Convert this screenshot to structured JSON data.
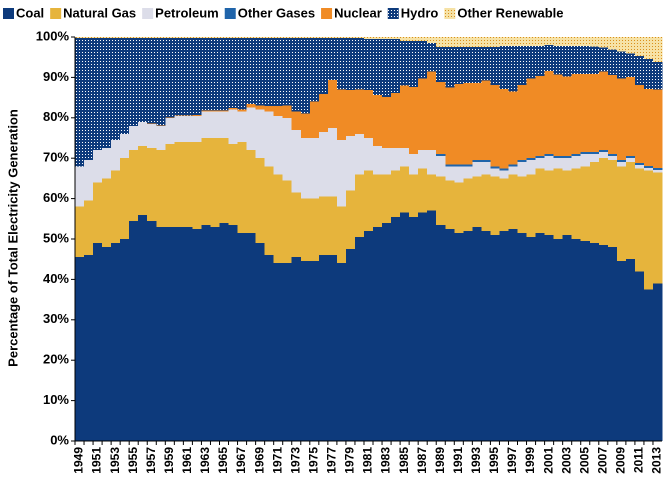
{
  "chart_data": {
    "type": "stacked_step_area",
    "y_label": "Percentage of Total Electricity Generation",
    "categories": [
      "1949",
      null,
      "1951",
      null,
      "1953",
      null,
      "1955",
      null,
      "1957",
      null,
      "1959",
      null,
      "1961",
      null,
      "1963",
      null,
      "1965",
      null,
      "1967",
      null,
      "1969",
      null,
      "1971",
      null,
      "1973",
      null,
      "1975",
      null,
      "1977",
      null,
      "1979",
      null,
      "1981",
      null,
      "1983",
      null,
      "1985",
      null,
      "1987",
      null,
      "1989",
      null,
      "1991",
      null,
      "1993",
      null,
      "1995",
      null,
      "1997",
      null,
      "1999",
      null,
      "2001",
      null,
      "2003",
      null,
      "2005",
      null,
      "2007",
      null,
      "2009",
      null,
      "2011",
      null,
      "2013"
    ],
    "ylim": [
      0,
      100
    ],
    "yticks": [
      {
        "value": 0,
        "label": "0%"
      },
      {
        "value": 10,
        "label": "10%"
      },
      {
        "value": 20,
        "label": "20%"
      },
      {
        "value": 30,
        "label": "30%"
      },
      {
        "value": 40,
        "label": "40%"
      },
      {
        "value": 50,
        "label": "50%"
      },
      {
        "value": 60,
        "label": "60%"
      },
      {
        "value": 70,
        "label": "70%"
      },
      {
        "value": 80,
        "label": "80%"
      },
      {
        "value": 90,
        "label": "90%"
      },
      {
        "value": 100,
        "label": "100%"
      }
    ],
    "legend": "top",
    "series": [
      {
        "name": "Coal",
        "color": "#0d3a7c",
        "values": [
          45.5,
          46,
          49,
          48,
          49,
          50,
          54.5,
          56,
          54.5,
          53,
          53,
          53,
          53,
          52.5,
          53.5,
          53,
          54,
          53.5,
          51.5,
          51.5,
          49,
          46,
          44,
          44,
          45.5,
          44.5,
          44.5,
          46,
          46,
          44,
          47.5,
          50.5,
          52,
          53,
          54,
          55.5,
          56.5,
          55.5,
          56.5,
          57,
          53.5,
          52.5,
          51.5,
          52,
          53,
          52,
          51,
          52,
          52.5,
          51.5,
          50.5,
          51.5,
          51,
          50,
          51,
          50,
          49.5,
          49,
          48.5,
          48,
          44.5,
          45,
          42,
          37.5,
          39
        ]
      },
      {
        "name": "Natural Gas",
        "color": "#e6b43c",
        "values": [
          12.5,
          13.5,
          15,
          17,
          18,
          20,
          17.5,
          17,
          18,
          19,
          20.5,
          21,
          21,
          21.5,
          21.5,
          22,
          21,
          20,
          22.5,
          20.5,
          21,
          22,
          22,
          20.5,
          16,
          15.5,
          15.5,
          14.5,
          14.5,
          14,
          14.5,
          15.5,
          15,
          13,
          12,
          11.5,
          11.5,
          10.5,
          11,
          9,
          12,
          12,
          12.5,
          13,
          12.5,
          14,
          14.5,
          13,
          13.5,
          14,
          15.5,
          16,
          16,
          17.5,
          16,
          17.5,
          18.5,
          20,
          21.5,
          21.5,
          23.5,
          24,
          25.5,
          29.5,
          27.5
        ]
      },
      {
        "name": "Petroleum",
        "color": "#dcdde9",
        "values": [
          10,
          10,
          8,
          7.5,
          7.5,
          6,
          6,
          6,
          6,
          6,
          6.5,
          6.5,
          6.5,
          6.5,
          6.5,
          6.5,
          6.5,
          8.5,
          7.5,
          10.5,
          12,
          13.5,
          14.5,
          15.5,
          15.5,
          15,
          15,
          16,
          17,
          16.5,
          13.5,
          10,
          8,
          7,
          6.5,
          5.5,
          4.5,
          5,
          4.5,
          6,
          5,
          3.5,
          4,
          3,
          3.5,
          3,
          2,
          2,
          2,
          3.5,
          3.5,
          2.5,
          3.5,
          2.5,
          3,
          3,
          3,
          2,
          1.5,
          1,
          1,
          1,
          0.8,
          0.6,
          0.6
        ]
      },
      {
        "name": "Other Gases",
        "color": "#1f64aa",
        "values": [
          0,
          0,
          0,
          0,
          0,
          0,
          0,
          0,
          0,
          0,
          0,
          0,
          0,
          0,
          0,
          0,
          0,
          0,
          0,
          0,
          0,
          0,
          0,
          0,
          0,
          0,
          0,
          0,
          0,
          0,
          0,
          0,
          0,
          0,
          0,
          0,
          0,
          0,
          0,
          0,
          0.5,
          0.5,
          0.5,
          0.5,
          0.5,
          0.5,
          0.5,
          0.5,
          0.5,
          0.5,
          0.5,
          0.5,
          0.5,
          0.5,
          0.5,
          0.5,
          0.5,
          0.5,
          0.5,
          0.5,
          0.5,
          0.5,
          0.5,
          0.5,
          0.5
        ]
      },
      {
        "name": "Nuclear",
        "color": "#f08b25",
        "values": [
          0,
          0,
          0,
          0,
          0,
          0,
          0,
          0,
          0.1,
          0.1,
          0.1,
          0.1,
          0.1,
          0.2,
          0.3,
          0.3,
          0.3,
          0.4,
          0.5,
          0.9,
          1,
          1.4,
          2.4,
          3.1,
          4.5,
          6.1,
          9,
          9.4,
          11.8,
          12.5,
          11.4,
          11,
          11.9,
          12.6,
          12.7,
          13.6,
          15.5,
          16.6,
          17.7,
          19.5,
          17.8,
          19,
          19.9,
          20.1,
          19.1,
          19.7,
          20.1,
          19.6,
          18,
          18.6,
          19.7,
          19.8,
          20.6,
          20.2,
          19.7,
          19.9,
          19.3,
          19.4,
          19.4,
          19.6,
          20.2,
          19.6,
          19.3,
          19,
          19.4
        ]
      },
      {
        "name": "Hydro",
        "color": "#0d3a7c",
        "dot_color": "#ffffff",
        "values": [
          31.8,
          30.3,
          27.8,
          27.3,
          25.3,
          23.8,
          21.8,
          20.8,
          21.2,
          21.7,
          19.7,
          19.2,
          19.2,
          19.1,
          18,
          18,
          18,
          17.4,
          17.8,
          16.4,
          16.8,
          16.9,
          16.9,
          16.7,
          18.3,
          18.7,
          15.8,
          13.9,
          10.5,
          12.8,
          12.9,
          12.8,
          12.6,
          13.9,
          14.3,
          13.4,
          11,
          11.4,
          9.3,
          7,
          8.7,
          10,
          9.1,
          8.9,
          8.9,
          8.3,
          9.4,
          10.7,
          11.3,
          9.7,
          8.1,
          7.5,
          6.4,
          7.1,
          7.6,
          6.9,
          7,
          6.7,
          6,
          6.3,
          6.7,
          5.8,
          7.2,
          7.5,
          6.8
        ]
      },
      {
        "name": "Other Renewable",
        "color": "#f6e2a6",
        "dot_color": "#d9901c",
        "values": [
          0.2,
          0.2,
          0.2,
          0.2,
          0.2,
          0.2,
          0.2,
          0.2,
          0.2,
          0.2,
          0.2,
          0.2,
          0.2,
          0.2,
          0.2,
          0.2,
          0.2,
          0.2,
          0.2,
          0.2,
          0.2,
          0.2,
          0.2,
          0.2,
          0.2,
          0.2,
          0.2,
          0.2,
          0.2,
          0.2,
          0.2,
          0.2,
          0.5,
          0.5,
          0.5,
          0.5,
          1,
          1,
          1,
          1.5,
          2.5,
          2.5,
          2.5,
          2.5,
          2.5,
          2.5,
          2.5,
          2.2,
          2.2,
          2.2,
          2.2,
          2.2,
          2,
          2.2,
          2.2,
          2.2,
          2.2,
          2.4,
          2.6,
          3.1,
          3.6,
          4.1,
          4.7,
          5.4,
          6.2
        ]
      }
    ]
  }
}
